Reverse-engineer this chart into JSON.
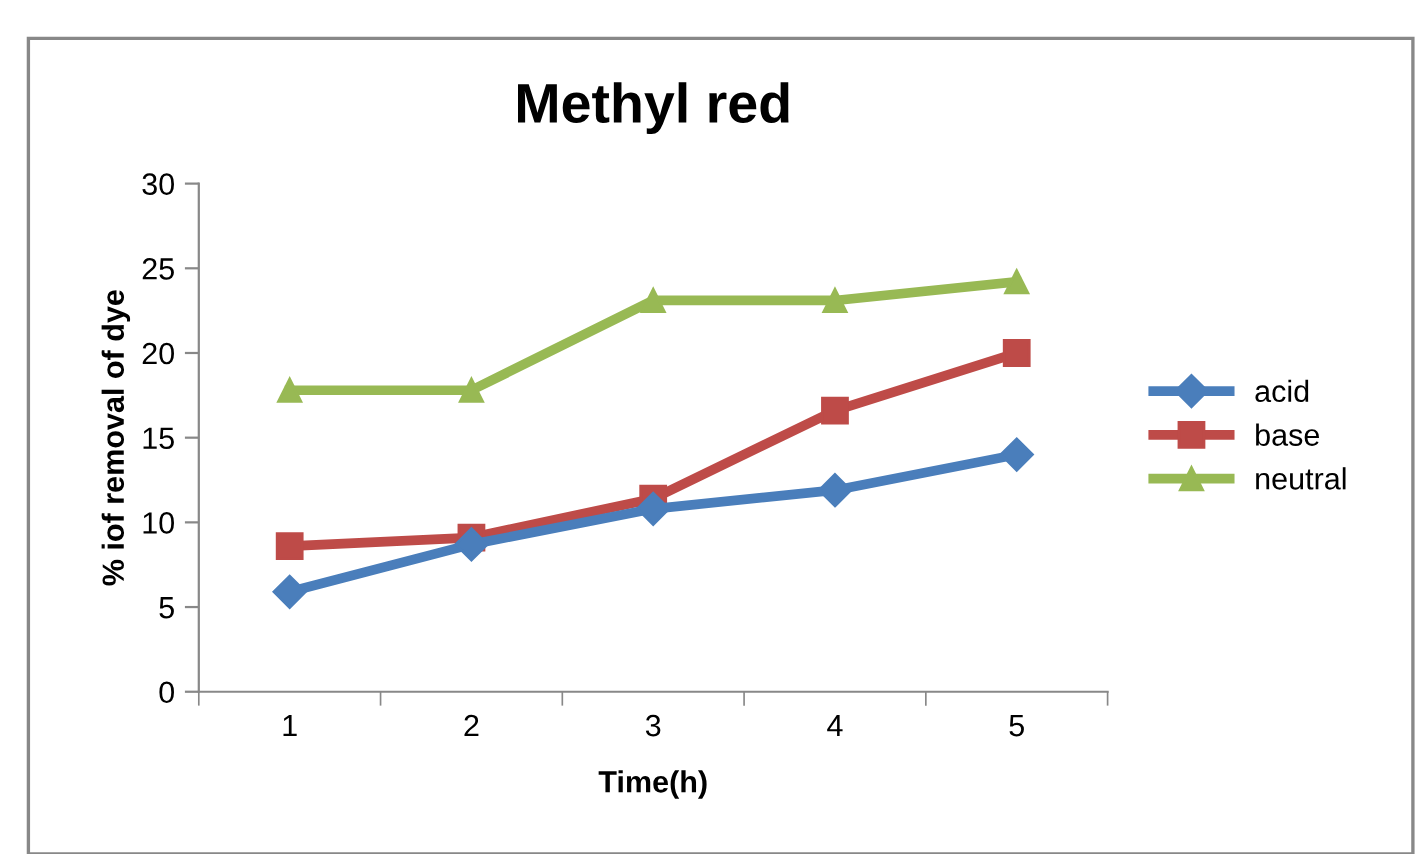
{
  "chart_data": {
    "type": "line",
    "title": "Methyl red",
    "xlabel": "Time(h)",
    "ylabel": "% iof removal of dye",
    "categories": [
      "1",
      "2",
      "3",
      "4",
      "5"
    ],
    "series": [
      {
        "name": "acid",
        "color": "#4a7ebb",
        "marker": "diamond",
        "values": [
          5.9,
          8.7,
          10.8,
          11.9,
          14.0
        ]
      },
      {
        "name": "base",
        "color": "#be4b48",
        "marker": "square",
        "values": [
          8.6,
          9.1,
          11.4,
          16.6,
          20.0
        ]
      },
      {
        "name": "neutral",
        "color": "#98b954",
        "marker": "triangle",
        "values": [
          17.8,
          17.8,
          23.1,
          23.1,
          24.2
        ]
      }
    ],
    "ylim": [
      0,
      30
    ],
    "yticks": [
      0,
      5,
      10,
      15,
      20,
      25,
      30
    ],
    "grid": false,
    "legend": "right",
    "line_style": "solid"
  }
}
